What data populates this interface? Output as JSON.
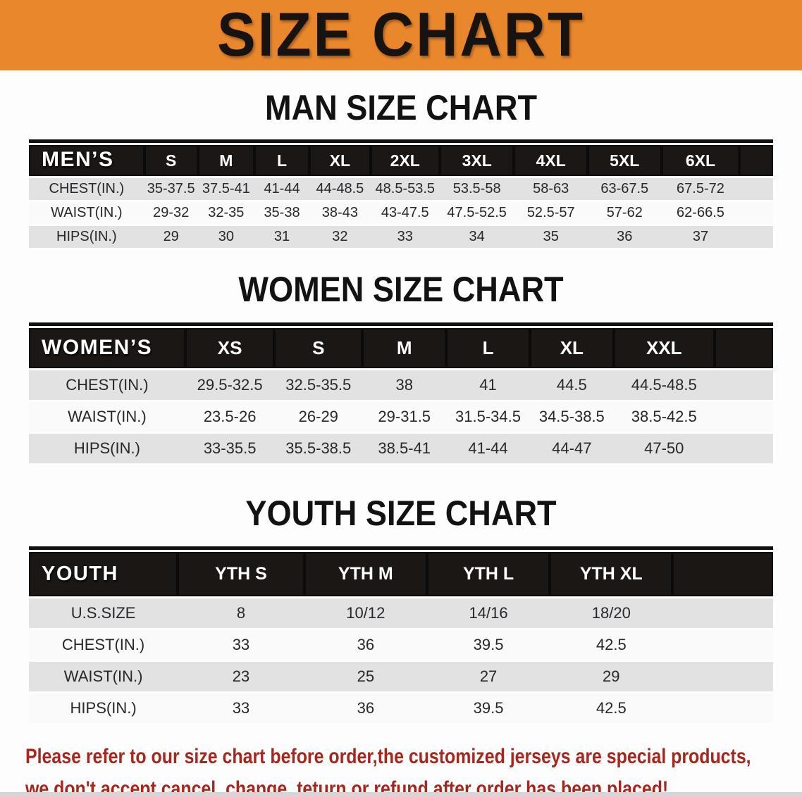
{
  "banner": {
    "title": "SIZE CHART"
  },
  "colors": {
    "banner_bg": "#E8872C",
    "header_band_bg": "#1A1714",
    "row_gray": "#E2E2E2",
    "row_white": "#FAFAFA",
    "disclaimer_red": "#A6271E"
  },
  "sections": {
    "men": {
      "heading": "MAN SIZE CHART",
      "corner_label": "MEN’S",
      "columns": [
        "S",
        "M",
        "L",
        "XL",
        "2XL",
        "3XL",
        "4XL",
        "5XL",
        "6XL"
      ],
      "rows": [
        {
          "label": "CHEST(IN.)",
          "values": [
            "35-37.5",
            "37.5-41",
            "41-44",
            "44-48.5",
            "48.5-53.5",
            "53.5-58",
            "58-63",
            "63-67.5",
            "67.5-72"
          ]
        },
        {
          "label": "WAIST(IN.)",
          "values": [
            "29-32",
            "32-35",
            "35-38",
            "38-43",
            "43-47.5",
            "47.5-52.5",
            "52.5-57",
            "57-62",
            "62-66.5"
          ]
        },
        {
          "label": "HIPS(IN.)",
          "values": [
            "29",
            "30",
            "31",
            "32",
            "33",
            "34",
            "35",
            "36",
            "37"
          ]
        }
      ]
    },
    "women": {
      "heading": "WOMEN SIZE CHART",
      "corner_label": "WOMEN’S",
      "columns": [
        "XS",
        "S",
        "M",
        "L",
        "XL",
        "XXL"
      ],
      "rows": [
        {
          "label": "CHEST(IN.)",
          "values": [
            "29.5-32.5",
            "32.5-35.5",
            "38",
            "41",
            "44.5",
            "44.5-48.5"
          ]
        },
        {
          "label": "WAIST(IN.)",
          "values": [
            "23.5-26",
            "26-29",
            "29-31.5",
            "31.5-34.5",
            "34.5-38.5",
            "38.5-42.5"
          ]
        },
        {
          "label": "HIPS(IN.)",
          "values": [
            "33-35.5",
            "35.5-38.5",
            "38.5-41",
            "41-44",
            "44-47",
            "47-50"
          ]
        }
      ]
    },
    "youth": {
      "heading": "YOUTH SIZE CHART",
      "corner_label": "YOUTH",
      "columns": [
        "YTH S",
        "YTH M",
        "YTH L",
        "YTH XL"
      ],
      "rows": [
        {
          "label": "U.S.SIZE",
          "values": [
            "8",
            "10/12",
            "14/16",
            "18/20"
          ]
        },
        {
          "label": "CHEST(IN.)",
          "values": [
            "33",
            "36",
            "39.5",
            "42.5"
          ]
        },
        {
          "label": "WAIST(IN.)",
          "values": [
            "23",
            "25",
            "27",
            "29"
          ]
        },
        {
          "label": "HIPS(IN.)",
          "values": [
            "33",
            "36",
            "39.5",
            "42.5"
          ]
        }
      ]
    }
  },
  "disclaimer": {
    "line1": "Please refer to our size chart before order,the customized jerseys are special products,",
    "line2": "we don't accept cancel, change, teturn or refund after order has been placed!"
  }
}
